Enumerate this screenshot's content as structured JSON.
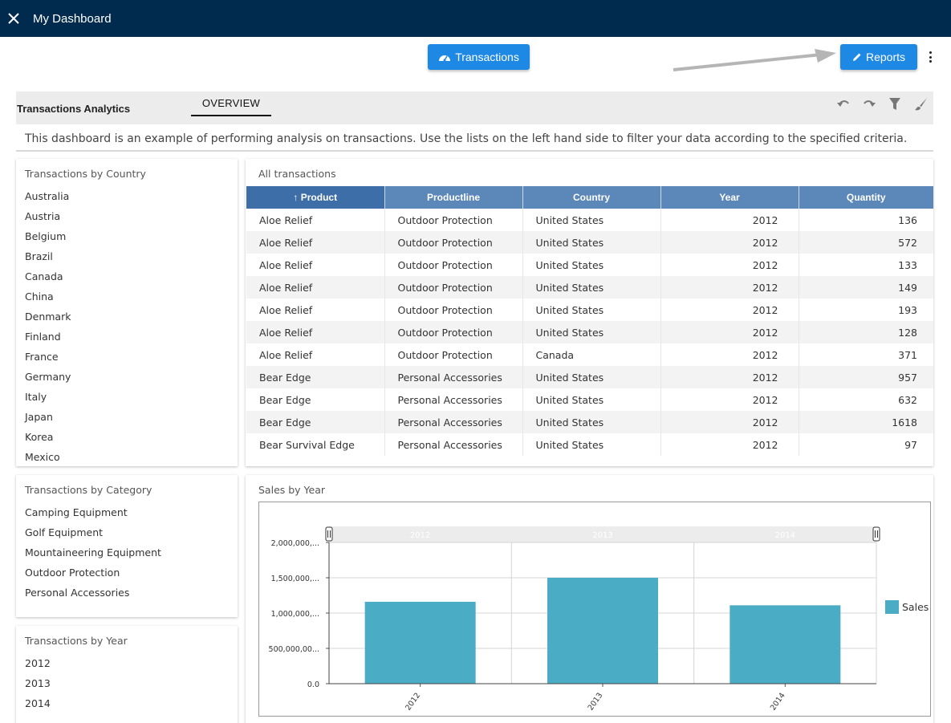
{
  "app": {
    "title": "My Dashboard"
  },
  "toolbar": {
    "transactions_label": "Transactions",
    "reports_label": "Reports",
    "accent": "#1e88e5"
  },
  "dashboard": {
    "title": "Transactions Analytics",
    "tab": "OVERVIEW",
    "description": "This dashboard is an example of performing analysis on transactions. Use the lists on the left hand side to filter your data according to the specified criteria."
  },
  "country_panel": {
    "title": "Transactions by Country",
    "items": [
      "Australia",
      "Austria",
      "Belgium",
      "Brazil",
      "Canada",
      "China",
      "Denmark",
      "Finland",
      "France",
      "Germany",
      "Italy",
      "Japan",
      "Korea",
      "Mexico"
    ]
  },
  "category_panel": {
    "title": "Transactions by Category",
    "items": [
      "Camping Equipment",
      "Golf Equipment",
      "Mountaineering Equipment",
      "Outdoor Protection",
      "Personal Accessories"
    ]
  },
  "year_panel": {
    "title": "Transactions by Year",
    "items": [
      "2012",
      "2013",
      "2014"
    ]
  },
  "table": {
    "title": "All transactions",
    "columns": [
      "Product",
      "Productline",
      "Country",
      "Year",
      "Quantity"
    ],
    "sort_indicator": "↑",
    "rows": [
      [
        "Aloe Relief",
        "Outdoor Protection",
        "United States",
        "2012",
        "136"
      ],
      [
        "Aloe Relief",
        "Outdoor Protection",
        "United States",
        "2012",
        "572"
      ],
      [
        "Aloe Relief",
        "Outdoor Protection",
        "United States",
        "2012",
        "133"
      ],
      [
        "Aloe Relief",
        "Outdoor Protection",
        "United States",
        "2012",
        "149"
      ],
      [
        "Aloe Relief",
        "Outdoor Protection",
        "United States",
        "2012",
        "193"
      ],
      [
        "Aloe Relief",
        "Outdoor Protection",
        "United States",
        "2012",
        "128"
      ],
      [
        "Aloe Relief",
        "Outdoor Protection",
        "Canada",
        "2012",
        "371"
      ],
      [
        "Bear Edge",
        "Personal Accessories",
        "United States",
        "2012",
        "957"
      ],
      [
        "Bear Edge",
        "Personal Accessories",
        "United States",
        "2012",
        "632"
      ],
      [
        "Bear Edge",
        "Personal Accessories",
        "United States",
        "2012",
        "1618"
      ],
      [
        "Bear Survival Edge",
        "Personal Accessories",
        "United States",
        "2012",
        "97"
      ]
    ]
  },
  "chart_data": {
    "type": "bar",
    "title": "Sales by Year",
    "categories": [
      "2012",
      "2013",
      "2014"
    ],
    "series": [
      {
        "name": "Sales",
        "values": [
          1160000000,
          1500000000,
          1110000000
        ],
        "color": "#4bacc6"
      }
    ],
    "ylim": [
      0,
      2000000000
    ],
    "yticks": [
      "0.0",
      "500,000,00...",
      "1,000,000,...",
      "1,500,000,...",
      "2,000,000,..."
    ],
    "grid": true,
    "legend": "right"
  }
}
